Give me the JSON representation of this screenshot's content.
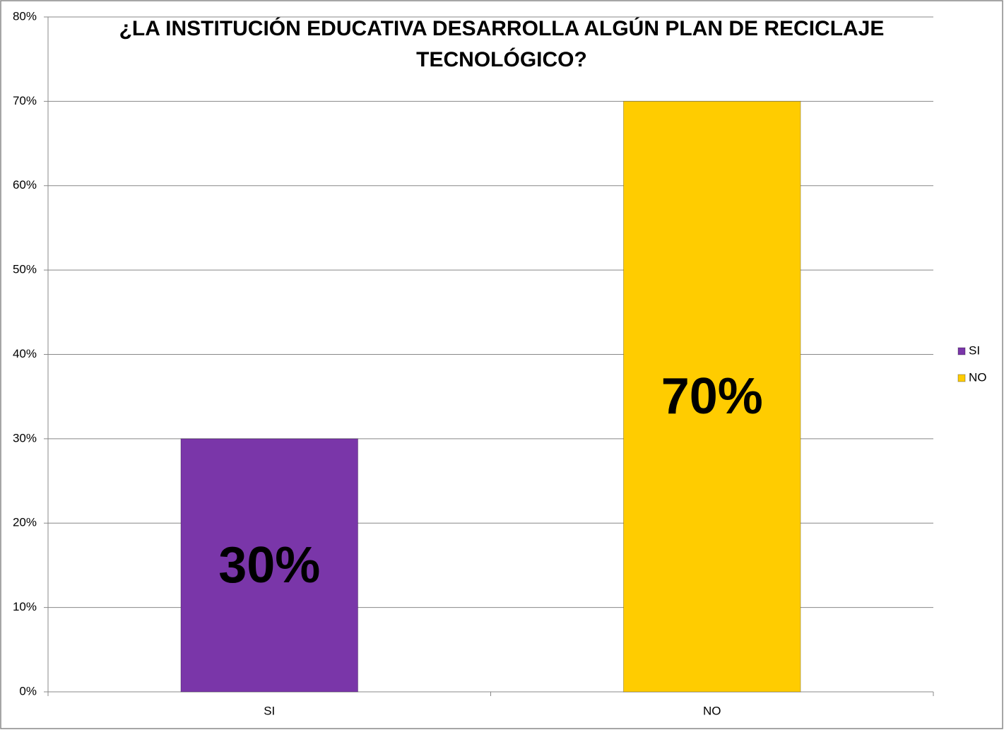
{
  "chart_data": {
    "type": "bar",
    "title": [
      "¿LA INSTITUCIÓN EDUCATIVA DESARROLLA ALGÚN PLAN DE RECICLAJE",
      "TECNOLÓGICO?"
    ],
    "categories": [
      "SI",
      "NO"
    ],
    "values": [
      30,
      70
    ],
    "value_labels": [
      "30%",
      "70%"
    ],
    "colors": [
      "#7a36a9",
      "#ffcc00"
    ],
    "ylim": [
      0,
      80
    ],
    "yticks": [
      {
        "value": 0,
        "label": "0%"
      },
      {
        "value": 10,
        "label": "10%"
      },
      {
        "value": 20,
        "label": "20%"
      },
      {
        "value": 30,
        "label": "30%"
      },
      {
        "value": 40,
        "label": "40%"
      },
      {
        "value": 50,
        "label": "50%"
      },
      {
        "value": 60,
        "label": "60%"
      },
      {
        "value": 70,
        "label": "70%"
      },
      {
        "value": 80,
        "label": "80%"
      }
    ],
    "grid": true,
    "legend": "right"
  }
}
